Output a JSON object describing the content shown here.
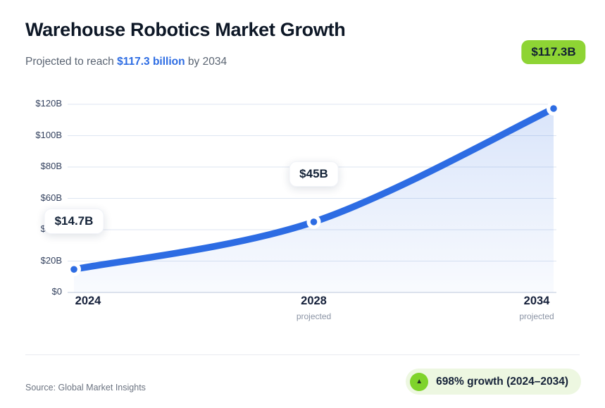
{
  "header": {
    "title": "Warehouse Robotics Market Growth",
    "subtitle": {
      "prefix": "Projected to reach ",
      "highlight": "$117.3 billion",
      "suffix": " by 2034"
    }
  },
  "chart_data": {
    "type": "area",
    "title": "Warehouse Robotics Market Growth",
    "categories": [
      "2024",
      "2028",
      "2034"
    ],
    "x_sub_labels": [
      "",
      "projected",
      "projected"
    ],
    "values": [
      14.7,
      45,
      117.3
    ],
    "point_labels": [
      "$14.7B",
      "$45B",
      "$117.3B"
    ],
    "point_label_styles": [
      "white",
      "white",
      "green"
    ],
    "y_tick_values": [
      0,
      20,
      40,
      60,
      80,
      100,
      120
    ],
    "y_tick_labels": [
      "$0",
      "$20B",
      "$40B",
      "$60B",
      "$80B",
      "$100B",
      "$120B"
    ],
    "ylim": [
      0,
      120
    ],
    "grid": true,
    "legend": false
  },
  "footer": {
    "source": "Source: Global Market Insights",
    "growth_pill": {
      "icon": "trend-up-icon",
      "label": "698% growth (2024–2034)"
    }
  },
  "colors": {
    "accent_blue": "#2d6ce3",
    "badge_green": "#8ed434",
    "pill_bg": "#edf7e1",
    "pill_icon_green": "#7fd32b",
    "title_dark": "#0d1726"
  }
}
